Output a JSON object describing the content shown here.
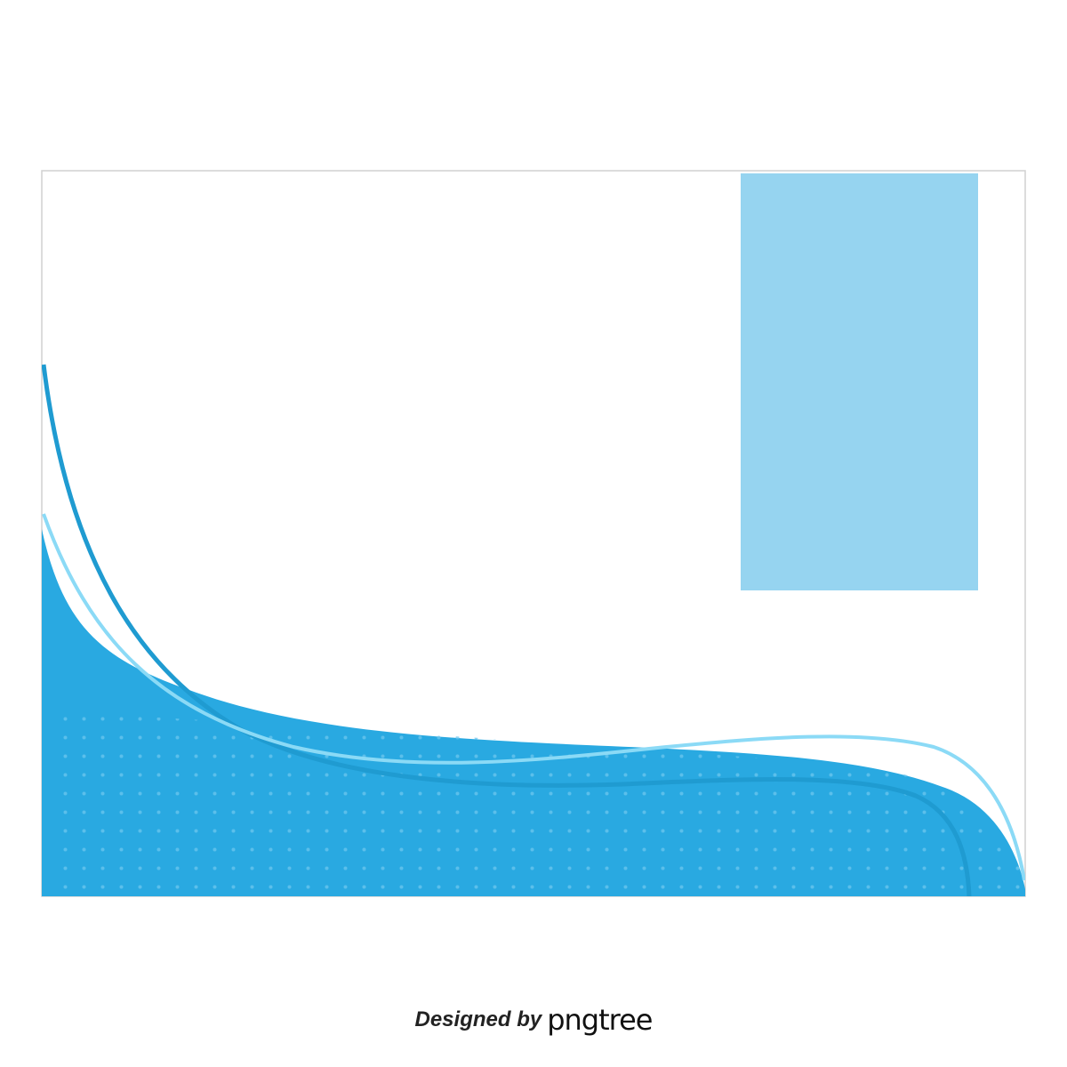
{
  "colors": {
    "card_border": "#d0d0d0",
    "card_fill": "#ffffff",
    "panel": "#96d4f0",
    "wave": "#29a9e1",
    "wave_dots": "#6cc6ee",
    "line_dark": "#1f9bd1",
    "line_light": "#8bdaf6",
    "credit_text": "#222222"
  },
  "credit": {
    "prefix": "Designed by",
    "brand": "pngtree"
  }
}
